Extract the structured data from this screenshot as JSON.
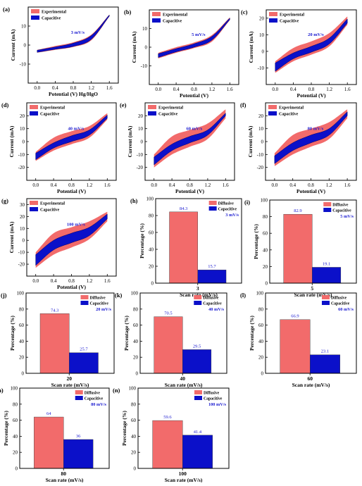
{
  "colors": {
    "experimental": "#f26b6b",
    "capacitive": "#0b10c9",
    "diffusive": "#f26b6b",
    "annotation": "#1a1ad0"
  },
  "chart_data": [
    {
      "panel": "(a)",
      "type": "area",
      "rate_label": "3 mV/s",
      "xlabel": "Potential (V) Hg/HgO",
      "ylabel": "Current (mA)",
      "xlim": [
        -0.2,
        1.8
      ],
      "ylim": [
        -20,
        20
      ],
      "xticks": [
        "0.0",
        "0.4",
        "0.8",
        "1.2",
        "1.6"
      ],
      "yticks": [
        "-10",
        "0",
        "10"
      ],
      "legend": [
        "Experimental",
        "Capacitive"
      ],
      "x": [
        0.0,
        0.4,
        0.8,
        1.2,
        1.6
      ],
      "series": [
        {
          "name": "Experimental",
          "upper": [
            -2.5,
            -0.5,
            1.5,
            5.5,
            16.0
          ],
          "lower": [
            -4.0,
            -2.5,
            -1.0,
            2.5,
            15.0
          ]
        },
        {
          "name": "Capacitive",
          "upper": [
            -2.7,
            -1.0,
            1.0,
            5.0,
            15.8
          ],
          "lower": [
            -3.8,
            -2.2,
            -0.7,
            3.0,
            15.2
          ]
        }
      ]
    },
    {
      "panel": "(b)",
      "type": "area",
      "rate_label": "5 mV/s",
      "xlabel": "Potential (V)",
      "ylabel": "Current (mA)",
      "xlim": [
        -0.2,
        1.8
      ],
      "ylim": [
        -20,
        20
      ],
      "xticks": [
        "0.0",
        "0.4",
        "0.8",
        "1.2",
        "1.6"
      ],
      "yticks": [
        "-10",
        "0",
        "10"
      ],
      "legend": [
        "Experimental",
        "Capacitive"
      ],
      "x": [
        0.0,
        0.4,
        0.8,
        1.2,
        1.6
      ],
      "series": [
        {
          "name": "Experimental",
          "upper": [
            -3.0,
            0.0,
            2.5,
            6.5,
            16.0
          ],
          "lower": [
            -6.0,
            -3.0,
            -0.5,
            3.0,
            14.5
          ]
        },
        {
          "name": "Capacitive",
          "upper": [
            -3.5,
            -0.8,
            1.8,
            5.8,
            15.6
          ],
          "lower": [
            -5.5,
            -2.5,
            0.0,
            3.8,
            14.8
          ]
        }
      ]
    },
    {
      "panel": "(c)",
      "type": "area",
      "rate_label": "20 mV/s",
      "xlabel": "Potential (V)",
      "ylabel": "Current (mA)",
      "xlim": [
        -0.2,
        1.8
      ],
      "ylim": [
        -20,
        25
      ],
      "xticks": [
        "0.0",
        "0.4",
        "0.8",
        "1.2",
        "1.6"
      ],
      "yticks": [
        "-10",
        "0",
        "10",
        "20"
      ],
      "legend": [
        "Experimental",
        "Capacitive"
      ],
      "x": [
        0.0,
        0.4,
        0.8,
        1.2,
        1.6
      ],
      "series": [
        {
          "name": "Experimental",
          "upper": [
            -6.0,
            2.0,
            6.0,
            11.0,
            21.0
          ],
          "lower": [
            -13.0,
            -6.0,
            -2.0,
            3.0,
            16.0
          ]
        },
        {
          "name": "Capacitive",
          "upper": [
            -7.0,
            -1.0,
            3.0,
            8.0,
            19.5
          ],
          "lower": [
            -12.0,
            -4.5,
            -0.5,
            4.5,
            17.0
          ]
        }
      ]
    },
    {
      "panel": "(d)",
      "type": "area",
      "rate_label": "40 mV/s",
      "xlabel": "Potential (V)",
      "ylabel": "Current (mA)",
      "xlim": [
        -0.2,
        1.8
      ],
      "ylim": [
        -30,
        30
      ],
      "xticks": [
        "0.0",
        "0.4",
        "0.8",
        "1.2",
        "1.6"
      ],
      "yticks": [
        "-20",
        "-10",
        "0",
        "10",
        "20"
      ],
      "legend": [
        "Experimental",
        "Capacitive"
      ],
      "x": [
        0.0,
        0.4,
        0.8,
        1.2,
        1.6
      ],
      "series": [
        {
          "name": "Experimental",
          "upper": [
            -8.0,
            3.0,
            8.0,
            12.0,
            22.0
          ],
          "lower": [
            -15.0,
            -7.0,
            -2.0,
            3.0,
            17.0
          ]
        },
        {
          "name": "Capacitive",
          "upper": [
            -9.0,
            -1.0,
            4.5,
            9.0,
            20.5
          ],
          "lower": [
            -14.0,
            -5.0,
            0.0,
            5.0,
            18.0
          ]
        }
      ]
    },
    {
      "panel": "(e)",
      "type": "area",
      "rate_label": "60 mV/s",
      "xlabel": "Potential (V)",
      "ylabel": "Current (mA)",
      "xlim": [
        -0.2,
        1.8
      ],
      "ylim": [
        -30,
        30
      ],
      "xticks": [
        "0.0",
        "0.4",
        "0.8",
        "1.2",
        "1.6"
      ],
      "yticks": [
        "-20",
        "-10",
        "0",
        "10",
        "20"
      ],
      "legend": [
        "Experimental",
        "Capacitive"
      ],
      "x": [
        0.0,
        0.4,
        0.8,
        1.2,
        1.6
      ],
      "series": [
        {
          "name": "Experimental",
          "upper": [
            -10.0,
            4.0,
            9.0,
            14.0,
            25.0
          ],
          "lower": [
            -20.0,
            -10.0,
            -4.0,
            2.0,
            18.0
          ]
        },
        {
          "name": "Capacitive",
          "upper": [
            -12.0,
            -2.0,
            4.0,
            9.0,
            22.0
          ],
          "lower": [
            -18.0,
            -7.0,
            -1.0,
            5.0,
            20.0
          ]
        }
      ]
    },
    {
      "panel": "(f)",
      "type": "area",
      "rate_label": "80 mV/s",
      "xlabel": "Potential (V)",
      "ylabel": "Current (mA)",
      "xlim": [
        -0.2,
        1.8
      ],
      "ylim": [
        -30,
        30
      ],
      "xticks": [
        "0.0",
        "0.4",
        "0.8",
        "1.2",
        "1.6"
      ],
      "yticks": [
        "-20",
        "-10",
        "0",
        "10",
        "20"
      ],
      "legend": [
        "Experimental",
        "Capacitive"
      ],
      "x": [
        0.0,
        0.4,
        0.8,
        1.2,
        1.6
      ],
      "series": [
        {
          "name": "Experimental",
          "upper": [
            -9.0,
            5.0,
            10.0,
            15.0,
            25.0
          ],
          "lower": [
            -19.0,
            -10.0,
            -4.0,
            2.0,
            18.0
          ]
        },
        {
          "name": "Capacitive",
          "upper": [
            -11.0,
            -1.0,
            5.0,
            10.0,
            23.0
          ],
          "lower": [
            -17.0,
            -7.0,
            -1.0,
            5.0,
            20.0
          ]
        }
      ]
    },
    {
      "panel": "(g)",
      "type": "area",
      "rate_label": "100 mV/s",
      "xlabel": "Potential (V)",
      "ylabel": "Current (mA)",
      "xlim": [
        -0.2,
        1.8
      ],
      "ylim": [
        -30,
        35
      ],
      "xticks": [
        "0.0",
        "0.4",
        "0.8",
        "1.2",
        "1.6"
      ],
      "yticks": [
        "-20",
        "-10",
        "0",
        "10",
        "20",
        "30"
      ],
      "legend": [
        "Experimental",
        "Capacitive"
      ],
      "x": [
        0.0,
        0.4,
        0.8,
        1.2,
        1.6
      ],
      "series": [
        {
          "name": "Experimental",
          "upper": [
            -10.0,
            6.0,
            11.0,
            16.0,
            24.0
          ],
          "lower": [
            -23.0,
            -12.0,
            -6.0,
            1.0,
            16.0
          ]
        },
        {
          "name": "Capacitive",
          "upper": [
            -12.0,
            0.0,
            6.0,
            11.0,
            22.0
          ],
          "lower": [
            -21.0,
            -8.0,
            -2.0,
            4.0,
            18.0
          ]
        }
      ]
    },
    {
      "panel": "(h)",
      "type": "bar",
      "rate_label": "3 mV/s",
      "category": "3",
      "xlabel": "Scan rate (mV/s)",
      "ylabel": "Percentage (%)",
      "ylim": [
        0,
        100
      ],
      "yticks": [
        "0",
        "20",
        "40",
        "60",
        "80",
        "100"
      ],
      "legend": [
        "Diffusive",
        "Capacitive"
      ],
      "values": [
        84.3,
        15.7
      ],
      "value_labels": [
        "84.3",
        "15.7"
      ]
    },
    {
      "panel": "(i)",
      "type": "bar",
      "rate_label": "5 mV/s",
      "category": "5",
      "xlabel": "Scan rate (mV/s)",
      "ylabel": "Percentage (%)",
      "ylim": [
        0,
        100
      ],
      "yticks": [
        "0",
        "20",
        "40",
        "60",
        "80",
        "100"
      ],
      "legend": [
        "Diffusive",
        "Capacitive"
      ],
      "values": [
        82.9,
        19.1
      ],
      "value_labels": [
        "82.9",
        "19.1"
      ]
    },
    {
      "panel": "(j)",
      "type": "bar",
      "rate_label": "20 mV/s",
      "category": "20",
      "xlabel": "Scan rate (mV/s)",
      "ylabel": "Percentage (%)",
      "ylim": [
        0,
        100
      ],
      "yticks": [
        "0",
        "20",
        "40",
        "60",
        "80",
        "100"
      ],
      "legend": [
        "Diffusive",
        "Capacitive"
      ],
      "values": [
        74.3,
        25.7
      ],
      "value_labels": [
        "74.3",
        "25.7"
      ]
    },
    {
      "panel": "(k)",
      "type": "bar",
      "rate_label": "40 mV/s",
      "category": "40",
      "xlabel": "Scan rate (mV/s)",
      "ylabel": "Percentage (%)",
      "ylim": [
        0,
        100
      ],
      "yticks": [
        "0",
        "20",
        "40",
        "60",
        "80",
        "100"
      ],
      "legend": [
        "Diffusive",
        "Capacitive"
      ],
      "values": [
        70.5,
        29.5
      ],
      "value_labels": [
        "70.5",
        "29.5"
      ]
    },
    {
      "panel": "(l)",
      "type": "bar",
      "rate_label": "60 mV/s",
      "category": "60",
      "xlabel": "Scan rate (mV/s)",
      "ylabel": "Percentage (%)",
      "ylim": [
        0,
        100
      ],
      "yticks": [
        "0",
        "20",
        "40",
        "60",
        "80",
        "100"
      ],
      "legend": [
        "Diffusive",
        "Capacitive"
      ],
      "values": [
        66.9,
        23.1
      ],
      "value_labels": [
        "66.9",
        "23.1"
      ]
    },
    {
      "panel": "(m)",
      "type": "bar",
      "rate_label": "80 mV/s",
      "category": "80",
      "xlabel": "Scan rate (mV/s)",
      "ylabel": "Percentage (%)",
      "ylim": [
        0,
        100
      ],
      "yticks": [
        "0",
        "20",
        "40",
        "60",
        "80",
        "100"
      ],
      "legend": [
        "Diffusive",
        "Capacitive"
      ],
      "values": [
        64,
        36
      ],
      "value_labels": [
        "64",
        "36"
      ]
    },
    {
      "panel": "(n)",
      "type": "bar",
      "rate_label": "100 mV/s",
      "category": "100",
      "xlabel": "Scan rate (mV/s)",
      "ylabel": "Percentage (%)",
      "ylim": [
        0,
        100
      ],
      "yticks": [
        "0",
        "20",
        "40",
        "60",
        "80",
        "100"
      ],
      "legend": [
        "Diffusive",
        "Capacitive"
      ],
      "values": [
        59.6,
        41.4
      ],
      "value_labels": [
        "59.6",
        "41.4"
      ]
    }
  ]
}
